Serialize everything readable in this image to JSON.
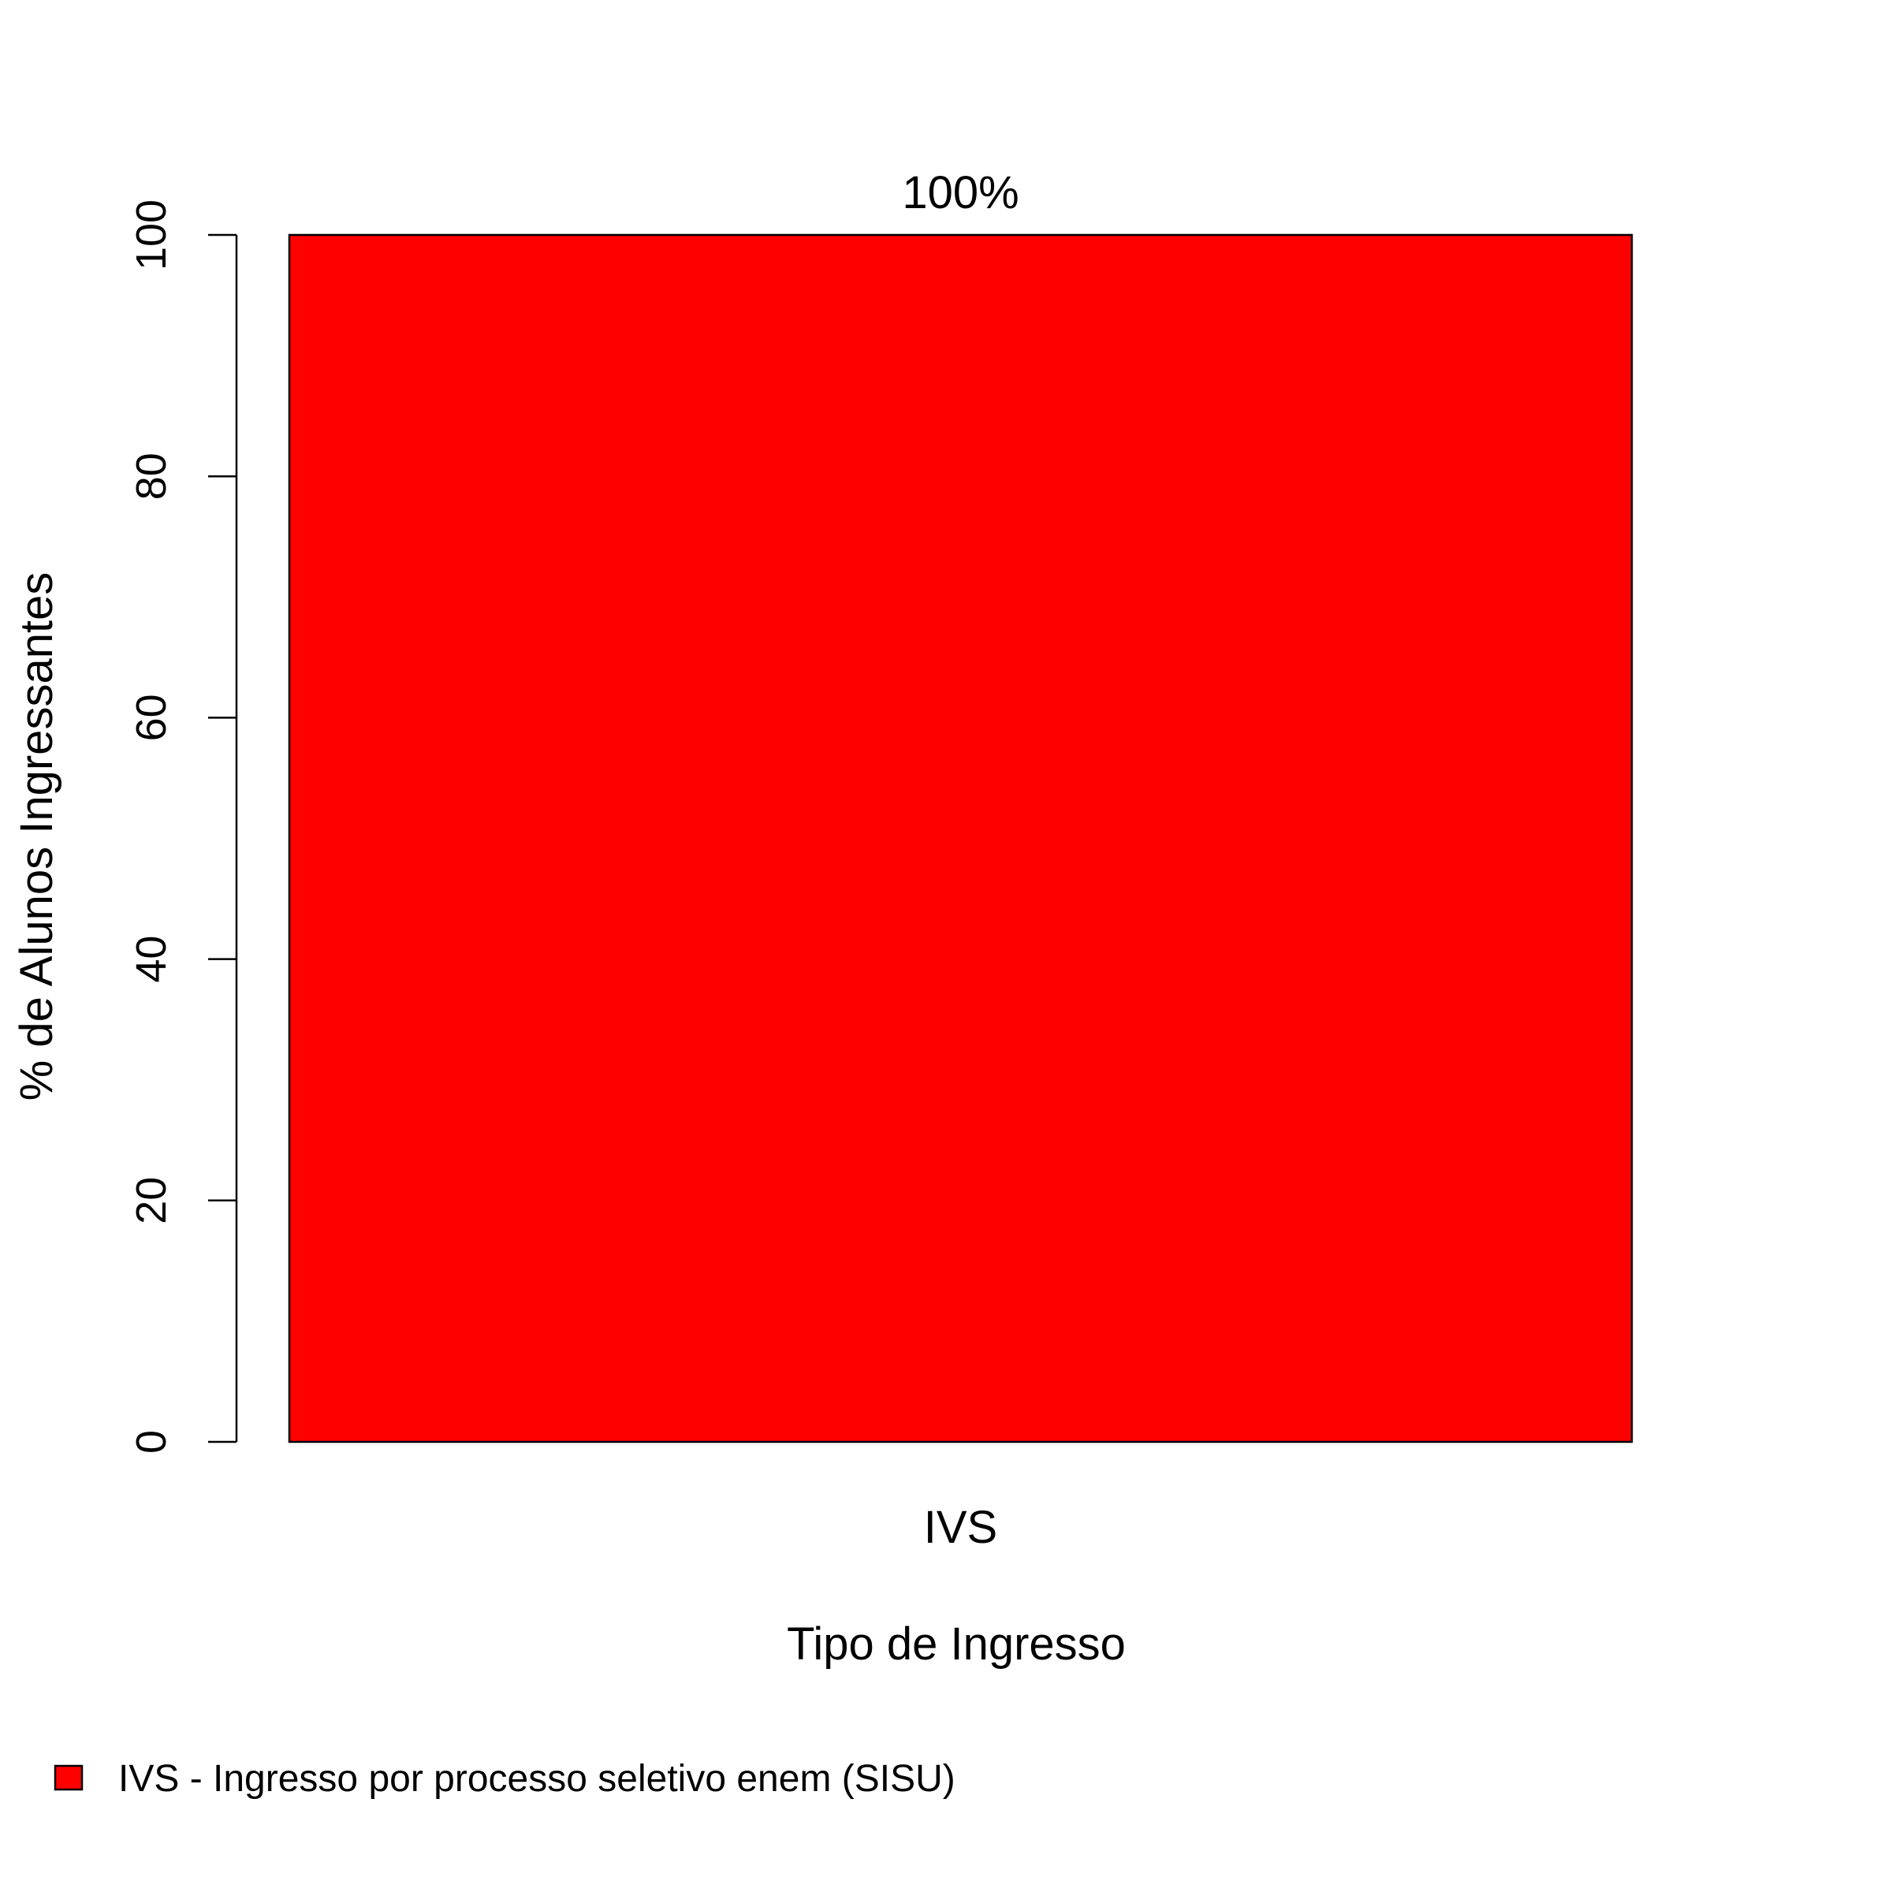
{
  "chart_data": {
    "type": "bar",
    "categories": [
      "IVS"
    ],
    "values": [
      100
    ],
    "value_labels": [
      "100%"
    ],
    "xlabel": "Tipo de Ingresso",
    "ylabel": "% de Alunos Ingressantes",
    "ylim": [
      0,
      100
    ],
    "yticks": [
      0,
      20,
      40,
      60,
      80,
      100
    ],
    "grid": false,
    "bar_color": "#ff0000",
    "legend": {
      "placement": "bottom-left",
      "entries": [
        {
          "label": "IVS - Ingresso por processo seletivo enem (SISU)",
          "color": "#ff0000"
        }
      ]
    }
  }
}
